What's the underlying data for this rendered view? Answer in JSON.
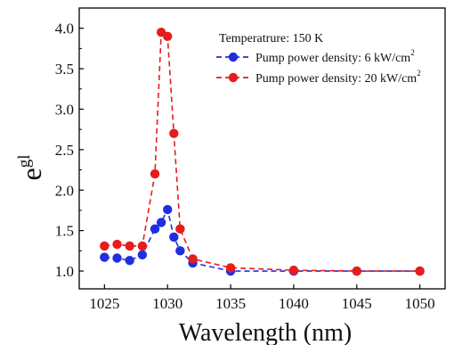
{
  "chart_data": {
    "type": "line",
    "xlabel": "Wavelength (nm)",
    "ylabel_base": "e",
    "ylabel_sup": "gl",
    "xlim": [
      1023,
      1052
    ],
    "ylim": [
      0.78,
      4.25
    ],
    "xticks": [
      1025,
      1030,
      1035,
      1040,
      1045,
      1050
    ],
    "xtick_labels": [
      "1025",
      "1030",
      "1035",
      "1040",
      "1045",
      "1050"
    ],
    "yticks": [
      1.0,
      1.5,
      2.0,
      2.5,
      3.0,
      3.5,
      4.0
    ],
    "ytick_labels": [
      "1.0",
      "1.5",
      "2.0",
      "2.5",
      "3.0",
      "3.5",
      "4.0"
    ],
    "grid": false,
    "legend_position": "top-right",
    "annotation": "Temperatrure: 150 K",
    "series": [
      {
        "name_main": "Pump power density: 6 kW/cm",
        "name_sup": "2",
        "color": "#1f2fe0",
        "x": [
          1025,
          1026,
          1027,
          1028,
          1029,
          1029.5,
          1030,
          1030.5,
          1031,
          1032,
          1035,
          1040,
          1045,
          1050
        ],
        "y": [
          1.17,
          1.16,
          1.13,
          1.2,
          1.52,
          1.6,
          1.76,
          1.42,
          1.25,
          1.1,
          1.0,
          1.0,
          1.0,
          1.0
        ]
      },
      {
        "name_main": "Pump power density: 20 kW/cm",
        "name_sup": "2",
        "color": "#e81c1c",
        "x": [
          1025,
          1026,
          1027,
          1028,
          1029,
          1029.5,
          1030,
          1030.5,
          1031,
          1032,
          1035,
          1040,
          1045,
          1050
        ],
        "y": [
          1.31,
          1.33,
          1.31,
          1.31,
          2.2,
          3.95,
          3.9,
          2.7,
          1.52,
          1.15,
          1.04,
          1.01,
          1.0,
          1.0
        ]
      }
    ]
  }
}
